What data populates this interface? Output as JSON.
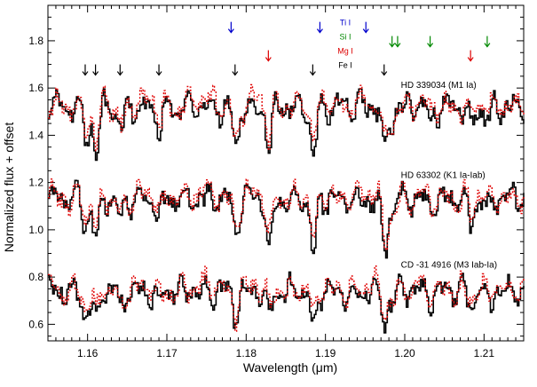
{
  "chart_data": {
    "type": "line",
    "xlabel": "Wavelength (μm)",
    "ylabel": "Normalized flux + offset",
    "xlim": [
      1.155,
      1.215
    ],
    "ylim": [
      0.53,
      1.95
    ],
    "xticks": [
      1.16,
      1.17,
      1.18,
      1.19,
      1.2,
      1.21
    ],
    "xtick_labels": [
      "1.16",
      "1.17",
      "1.18",
      "1.19",
      "1.20",
      "1.21"
    ],
    "yticks": [
      0.6,
      0.8,
      1.0,
      1.2,
      1.4,
      1.6,
      1.8
    ],
    "ytick_labels": [
      "0.6",
      "0.8",
      "1.0",
      "1.2",
      "1.4",
      "1.6",
      "1.8"
    ],
    "line_legend": [
      {
        "label": "Ti I",
        "color": "#0000cc"
      },
      {
        "label": "Si I",
        "color": "#008800"
      },
      {
        "label": "Mg I",
        "color": "#dd0000"
      },
      {
        "label": "Fe I",
        "color": "#000000"
      }
    ],
    "line_markers": [
      {
        "element": "Ti I",
        "color": "#0000cc",
        "wavelengths": [
          1.1781,
          1.1893,
          1.1951
        ]
      },
      {
        "element": "Si I",
        "color": "#008800",
        "wavelengths": [
          1.1984,
          1.1991,
          1.2032,
          1.2104
        ]
      },
      {
        "element": "Mg I",
        "color": "#dd0000",
        "wavelengths": [
          1.1828,
          1.2083
        ]
      },
      {
        "element": "Fe I",
        "color": "#000000",
        "wavelengths": [
          1.1597,
          1.161,
          1.1641,
          1.169,
          1.1786,
          1.1884,
          1.1974
        ]
      }
    ],
    "spectra": [
      {
        "label": "HD 339034  (M1 Ia)",
        "continuum": 1.55,
        "features": [
          [
            1.1597,
            0.15,
            0.0005
          ],
          [
            1.161,
            0.21,
            0.0005
          ],
          [
            1.1641,
            0.1,
            0.0005
          ],
          [
            1.169,
            0.09,
            0.0005
          ],
          [
            1.1786,
            0.19,
            0.0005
          ],
          [
            1.1828,
            0.17,
            0.0005
          ],
          [
            1.1884,
            0.22,
            0.0005
          ],
          [
            1.1974,
            0.2,
            0.0005
          ],
          [
            1.1984,
            0.07,
            0.0004
          ],
          [
            1.2032,
            0.06,
            0.0005
          ],
          [
            1.2083,
            0.09,
            0.0005
          ],
          [
            1.2104,
            0.06,
            0.0005
          ]
        ],
        "series": [
          {
            "name": "observed",
            "color": "#000000",
            "style": "solid"
          },
          {
            "name": "model",
            "color": "#e00000",
            "style": "dotted"
          }
        ]
      },
      {
        "label": "HD 63302  (K1 Ia-Iab)",
        "continuum": 1.16,
        "features": [
          [
            1.1597,
            0.12,
            0.0005
          ],
          [
            1.161,
            0.17,
            0.0005
          ],
          [
            1.1641,
            0.08,
            0.0005
          ],
          [
            1.169,
            0.08,
            0.0005
          ],
          [
            1.1786,
            0.13,
            0.0005
          ],
          [
            1.1828,
            0.23,
            0.0005
          ],
          [
            1.1884,
            0.25,
            0.0005
          ],
          [
            1.1974,
            0.23,
            0.0005
          ],
          [
            1.1984,
            0.06,
            0.0004
          ],
          [
            1.2032,
            0.06,
            0.0005
          ],
          [
            1.2083,
            0.11,
            0.0005
          ],
          [
            1.2104,
            0.05,
            0.0005
          ]
        ],
        "series": [
          {
            "name": "observed",
            "color": "#000000",
            "style": "solid"
          },
          {
            "name": "model",
            "color": "#e00000",
            "style": "dotted"
          }
        ]
      },
      {
        "label": "CD -31 4916  (M3 Iab-Ia)",
        "continuum": 0.77,
        "features": [
          [
            1.1597,
            0.12,
            0.0005
          ],
          [
            1.161,
            0.14,
            0.0005
          ],
          [
            1.1641,
            0.07,
            0.0005
          ],
          [
            1.169,
            0.06,
            0.0005
          ],
          [
            1.1786,
            0.1,
            0.0005
          ],
          [
            1.1828,
            0.1,
            0.0005
          ],
          [
            1.1884,
            0.18,
            0.0005
          ],
          [
            1.1974,
            0.14,
            0.0005
          ],
          [
            1.1984,
            0.05,
            0.0004
          ],
          [
            1.2032,
            0.05,
            0.0005
          ],
          [
            1.2083,
            0.07,
            0.0005
          ],
          [
            1.2104,
            0.05,
            0.0005
          ]
        ],
        "series": [
          {
            "name": "observed",
            "color": "#000000",
            "style": "solid"
          },
          {
            "name": "model",
            "color": "#e00000",
            "style": "dotted"
          }
        ]
      }
    ]
  }
}
